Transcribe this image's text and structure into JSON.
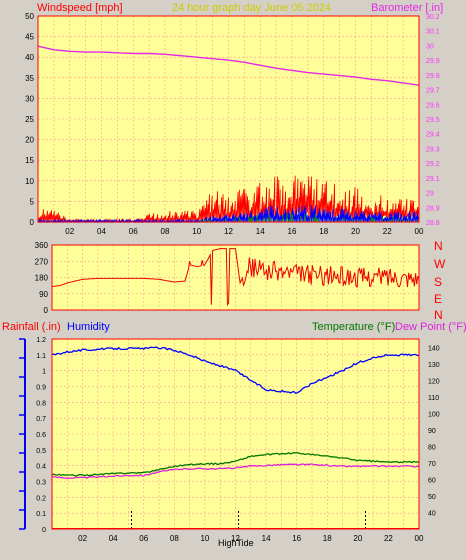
{
  "colors": {
    "background": "#d4d0c8",
    "plot_bg": "#ffff99",
    "grid": "#ff9999",
    "axis_left": "#ff0000",
    "windspeed": "#ff0000",
    "gust_blue": "#0000ff",
    "wind_green": "#009900",
    "barometer": "#e628e6",
    "direction": "#ee0000",
    "humidity": "#0000ff",
    "temperature": "#007700",
    "dewpoint": "#dd22dd",
    "rainfall": "#ff0000",
    "title": "#cccc00"
  },
  "header": {
    "windspeed_label": "Windspeed [mph]",
    "title": "24 hour graph day   June 05 2024",
    "barometer_label": "Barometer [.in]"
  },
  "footer_labels": {
    "rainfall": "Rainfall (.in)",
    "humidity": "Humidity",
    "temperature": "Temperature (°F)",
    "dewpoint": "Dew Point (°F)",
    "hightide": "HighTide"
  },
  "x_ticks": [
    "02",
    "04",
    "06",
    "08",
    "10",
    "12",
    "14",
    "16",
    "18",
    "20",
    "22",
    "00"
  ],
  "compass": [
    "N",
    "W",
    "S",
    "E",
    "N"
  ],
  "chart_data": [
    {
      "type": "line",
      "name": "wind",
      "ylim_left": [
        0,
        50
      ],
      "ylim_right": [
        28.8,
        30.2
      ],
      "left_ticks": [
        "0",
        "5",
        "10",
        "15",
        "20",
        "25",
        "30",
        "35",
        "40",
        "45",
        "50"
      ],
      "right_ticks": [
        "28.8",
        "28.9",
        "29",
        "29.1",
        "29.2",
        "29.3",
        "29.4",
        "29.5",
        "29.6",
        "29.7",
        "29.8",
        "29.9",
        "30",
        "30.1",
        "30.2"
      ],
      "x_hours": [
        0,
        24
      ],
      "barometer": [
        {
          "t": 0,
          "v": 29.995
        },
        {
          "t": 1,
          "v": 29.97
        },
        {
          "t": 2,
          "v": 29.96
        },
        {
          "t": 3,
          "v": 29.955
        },
        {
          "t": 4,
          "v": 29.955
        },
        {
          "t": 5,
          "v": 29.95
        },
        {
          "t": 6,
          "v": 29.945
        },
        {
          "t": 7,
          "v": 29.945
        },
        {
          "t": 8,
          "v": 29.94
        },
        {
          "t": 9,
          "v": 29.93
        },
        {
          "t": 10,
          "v": 29.92
        },
        {
          "t": 11,
          "v": 29.91
        },
        {
          "t": 12,
          "v": 29.9
        },
        {
          "t": 13,
          "v": 29.885
        },
        {
          "t": 14,
          "v": 29.865
        },
        {
          "t": 15,
          "v": 29.845
        },
        {
          "t": 16,
          "v": 29.83
        },
        {
          "t": 17,
          "v": 29.815
        },
        {
          "t": 18,
          "v": 29.805
        },
        {
          "t": 19,
          "v": 29.795
        },
        {
          "t": 20,
          "v": 29.785
        },
        {
          "t": 21,
          "v": 29.77
        },
        {
          "t": 22,
          "v": 29.76
        },
        {
          "t": 23,
          "v": 29.745
        },
        {
          "t": 24,
          "v": 29.73
        }
      ],
      "gust_profile": [
        {
          "t": 0,
          "v": 2.5
        },
        {
          "t": 1,
          "v": 2.5
        },
        {
          "t": 2,
          "v": 0.5
        },
        {
          "t": 3,
          "v": 0.5
        },
        {
          "t": 4,
          "v": 0.5
        },
        {
          "t": 5,
          "v": 0.6
        },
        {
          "t": 6,
          "v": 0.5
        },
        {
          "t": 7,
          "v": 1.5
        },
        {
          "t": 8,
          "v": 2
        },
        {
          "t": 9,
          "v": 2.5
        },
        {
          "t": 10,
          "v": 2
        },
        {
          "t": 10.5,
          "v": 4
        },
        {
          "t": 11,
          "v": 6
        },
        {
          "t": 12,
          "v": 6
        },
        {
          "t": 13,
          "v": 7
        },
        {
          "t": 14,
          "v": 7.5
        },
        {
          "t": 15,
          "v": 9
        },
        {
          "t": 16,
          "v": 9.5
        },
        {
          "t": 17,
          "v": 9
        },
        {
          "t": 18,
          "v": 8
        },
        {
          "t": 19,
          "v": 7.5
        },
        {
          "t": 20,
          "v": 6.5
        },
        {
          "t": 21,
          "v": 5
        },
        {
          "t": 22,
          "v": 5
        },
        {
          "t": 23,
          "v": 5
        },
        {
          "t": 24,
          "v": 4
        }
      ],
      "avg_profile": [
        {
          "t": 0,
          "v": 0.3
        },
        {
          "t": 10,
          "v": 0.3
        },
        {
          "t": 11,
          "v": 1
        },
        {
          "t": 13,
          "v": 1.5
        },
        {
          "t": 15,
          "v": 2.5
        },
        {
          "t": 17,
          "v": 2.5
        },
        {
          "t": 19,
          "v": 2
        },
        {
          "t": 21,
          "v": 1.5
        },
        {
          "t": 24,
          "v": 1.5
        }
      ]
    },
    {
      "type": "line",
      "name": "wind direction",
      "ylim": [
        0,
        360
      ],
      "ticks": [
        "0",
        "90",
        "180",
        "270",
        "360"
      ],
      "profile": [
        {
          "t": 0,
          "v": 130
        },
        {
          "t": 0.5,
          "v": 135
        },
        {
          "t": 1,
          "v": 150
        },
        {
          "t": 2,
          "v": 170
        },
        {
          "t": 3,
          "v": 175
        },
        {
          "t": 4,
          "v": 175
        },
        {
          "t": 5,
          "v": 175
        },
        {
          "t": 6,
          "v": 175
        },
        {
          "t": 7,
          "v": 170
        },
        {
          "t": 8,
          "v": 155
        },
        {
          "t": 8.7,
          "v": 160
        },
        {
          "t": 9,
          "v": 250
        },
        {
          "t": 9.5,
          "v": 240
        },
        {
          "t": 10,
          "v": 250
        },
        {
          "t": 10.5,
          "v": 330
        },
        {
          "t": 11,
          "v": 340
        },
        {
          "t": 12,
          "v": 340
        },
        {
          "t": 12.3,
          "v": 150
        },
        {
          "t": 12.8,
          "v": 240
        },
        {
          "t": 14,
          "v": 220
        },
        {
          "t": 16,
          "v": 200
        },
        {
          "t": 18,
          "v": 190
        },
        {
          "t": 20,
          "v": 180
        },
        {
          "t": 22,
          "v": 185
        },
        {
          "t": 24,
          "v": 180
        }
      ]
    },
    {
      "type": "line",
      "name": "humidity temperature dewpoint rainfall",
      "ylim_left": [
        0,
        1.2
      ],
      "ylim_right": [
        30,
        145
      ],
      "left_ticks": [
        "0",
        "0.1",
        "0.2",
        "0.3",
        "0.4",
        "0.5",
        "0.6",
        "0.7",
        "0.8",
        "0.9",
        "1",
        "1.1",
        "1.2"
      ],
      "right_ticks": [
        "40",
        "50",
        "60",
        "70",
        "80",
        "90",
        "100",
        "110",
        "120",
        "130",
        "140"
      ],
      "humidity": [
        {
          "t": 0,
          "v": 1.1
        },
        {
          "t": 1,
          "v": 1.12
        },
        {
          "t": 2,
          "v": 1.13
        },
        {
          "t": 3,
          "v": 1.135
        },
        {
          "t": 4,
          "v": 1.14
        },
        {
          "t": 5,
          "v": 1.14
        },
        {
          "t": 6,
          "v": 1.14
        },
        {
          "t": 7,
          "v": 1.145
        },
        {
          "t": 8,
          "v": 1.13
        },
        {
          "t": 9,
          "v": 1.1
        },
        {
          "t": 10,
          "v": 1.06
        },
        {
          "t": 11,
          "v": 1.03
        },
        {
          "t": 12,
          "v": 1.0
        },
        {
          "t": 13,
          "v": 0.94
        },
        {
          "t": 14,
          "v": 0.88
        },
        {
          "t": 15,
          "v": 0.87
        },
        {
          "t": 16,
          "v": 0.86
        },
        {
          "t": 17,
          "v": 0.92
        },
        {
          "t": 18,
          "v": 0.96
        },
        {
          "t": 19,
          "v": 1.0
        },
        {
          "t": 20,
          "v": 1.05
        },
        {
          "t": 21,
          "v": 1.08
        },
        {
          "t": 22,
          "v": 1.1
        },
        {
          "t": 23,
          "v": 1.1
        },
        {
          "t": 24,
          "v": 1.1
        }
      ],
      "temperature": [
        {
          "t": 0,
          "v": 63
        },
        {
          "t": 1,
          "v": 62.5
        },
        {
          "t": 2,
          "v": 62.5
        },
        {
          "t": 3,
          "v": 63
        },
        {
          "t": 4,
          "v": 63.5
        },
        {
          "t": 5,
          "v": 64
        },
        {
          "t": 6,
          "v": 64
        },
        {
          "t": 7,
          "v": 66
        },
        {
          "t": 8,
          "v": 68
        },
        {
          "t": 9,
          "v": 69
        },
        {
          "t": 10,
          "v": 69.5
        },
        {
          "t": 11,
          "v": 69.5
        },
        {
          "t": 12,
          "v": 71
        },
        {
          "t": 13,
          "v": 74
        },
        {
          "t": 14,
          "v": 75
        },
        {
          "t": 15,
          "v": 75.5
        },
        {
          "t": 16,
          "v": 76
        },
        {
          "t": 17,
          "v": 75
        },
        {
          "t": 18,
          "v": 74
        },
        {
          "t": 19,
          "v": 73
        },
        {
          "t": 20,
          "v": 71.5
        },
        {
          "t": 21,
          "v": 71
        },
        {
          "t": 22,
          "v": 70.5
        },
        {
          "t": 23,
          "v": 70.5
        },
        {
          "t": 24,
          "v": 70.5
        }
      ],
      "dewpoint": [
        {
          "t": 0,
          "v": 61.5
        },
        {
          "t": 1,
          "v": 61
        },
        {
          "t": 2,
          "v": 61
        },
        {
          "t": 3,
          "v": 61.5
        },
        {
          "t": 4,
          "v": 62
        },
        {
          "t": 5,
          "v": 62.5
        },
        {
          "t": 6,
          "v": 62.5
        },
        {
          "t": 7,
          "v": 64.5
        },
        {
          "t": 8,
          "v": 66
        },
        {
          "t": 9,
          "v": 66.5
        },
        {
          "t": 10,
          "v": 66.5
        },
        {
          "t": 11,
          "v": 66.5
        },
        {
          "t": 12,
          "v": 67
        },
        {
          "t": 13,
          "v": 68
        },
        {
          "t": 14,
          "v": 68.5
        },
        {
          "t": 15,
          "v": 69
        },
        {
          "t": 16,
          "v": 69
        },
        {
          "t": 17,
          "v": 69
        },
        {
          "t": 18,
          "v": 68.5
        },
        {
          "t": 19,
          "v": 68
        },
        {
          "t": 20,
          "v": 68
        },
        {
          "t": 21,
          "v": 68
        },
        {
          "t": 22,
          "v": 68
        },
        {
          "t": 23,
          "v": 68
        },
        {
          "t": 24,
          "v": 68
        }
      ],
      "rainfall": [
        {
          "t": 0,
          "v": 0
        },
        {
          "t": 24,
          "v": 0
        }
      ],
      "tide_markers_hours": [
        5.2,
        12.2,
        20.5
      ]
    }
  ]
}
